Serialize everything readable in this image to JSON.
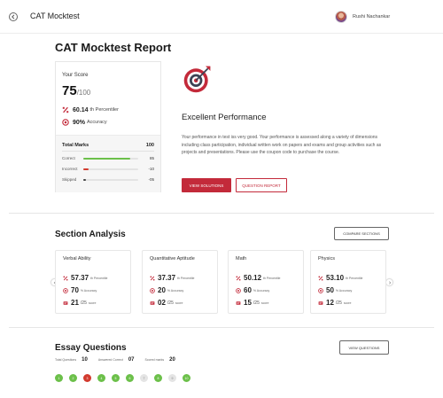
{
  "colors": {
    "accent": "#c32a3a",
    "correct": "#6cc04a",
    "incorrect": "#d23b2f",
    "skipped": "#444444",
    "unattempted": "#e4e4e4"
  },
  "header": {
    "back_icon": "chevron-left-icon",
    "title": "CAT Mocktest",
    "user_name": "Rushi Nachankar"
  },
  "report": {
    "title": "CAT Mocktest Report"
  },
  "score_card": {
    "label": "Your Score",
    "score": "75",
    "total": "/100",
    "percentile_value": "60.14",
    "percentile_label": "th Percentiler",
    "accuracy_value": "90%",
    "accuracy_label": "Accuracy",
    "total_marks_label": "Total Marks",
    "total_marks_value": "100",
    "rows": [
      {
        "label": "Correct",
        "value": "85",
        "fraction": 0.85,
        "color": "#6cc04a"
      },
      {
        "label": "Incorrect",
        "value": "-10",
        "fraction": 0.1,
        "color": "#d23b2f"
      },
      {
        "label": "Skipped",
        "value": "-05",
        "fraction": 0.05,
        "color": "#444444"
      }
    ]
  },
  "performance": {
    "icon": "target-icon",
    "title": "Excellent Performance",
    "description": "Your performance in test iss very good. Your performance is assessed along a variety of dimensions including class participation, individual written work on papers and exams and group activities such as projects and presentations. Please use the coupon code to purchase the course.",
    "view_solutions": "VIEW SOLUTIONS",
    "question_report": "QUESTION REPORT"
  },
  "section_analysis": {
    "title": "Section Analysis",
    "compare_label": "COMPARE SECTIONS",
    "sections": [
      {
        "name": "Verbal Ability",
        "percentile": "57.37",
        "accuracy": "70",
        "score": "21",
        "score_total": "/25"
      },
      {
        "name": "Quantitative Aptitude",
        "percentile": "37.37",
        "accuracy": "20",
        "score": "02",
        "score_total": "/25"
      },
      {
        "name": "Math",
        "percentile": "50.12",
        "accuracy": "60",
        "score": "15",
        "score_total": "/25"
      },
      {
        "name": "Physics",
        "percentile": "53.10",
        "accuracy": "50",
        "score": "12",
        "score_total": "/25"
      }
    ],
    "percentile_suffix": "th Percentile",
    "accuracy_suffix": "% Accuracy",
    "score_suffix": "score"
  },
  "essay": {
    "title": "Essay Questions",
    "view_label": "VIEW QUESTIONS",
    "total_questions_label": "Total Questions",
    "total_questions": "10",
    "answered_correct_label": "Answered Correct",
    "answered_correct": "07",
    "scored_marks_label": "Scored marks",
    "scored_marks": "20",
    "questions": [
      {
        "n": "1",
        "status": "correct"
      },
      {
        "n": "2",
        "status": "correct"
      },
      {
        "n": "3",
        "status": "incorrect"
      },
      {
        "n": "4",
        "status": "correct"
      },
      {
        "n": "5",
        "status": "correct"
      },
      {
        "n": "6",
        "status": "correct"
      },
      {
        "n": "7",
        "status": "unattempted"
      },
      {
        "n": "8",
        "status": "correct"
      },
      {
        "n": "9",
        "status": "unattempted"
      },
      {
        "n": "10",
        "status": "correct"
      }
    ]
  }
}
